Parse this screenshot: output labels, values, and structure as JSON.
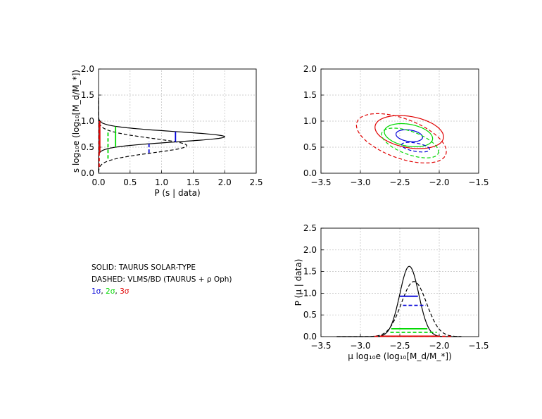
{
  "legend": {
    "solid": "SOLID:  TAURUS SOLAR-TYPE",
    "dashed": "DASHED: VLMS/BD (TAURUS + ρ Oph)",
    "s1": "1σ",
    "s2": "2σ",
    "s3": "3σ",
    "sep": ", "
  },
  "chart_data": [
    {
      "id": "p_s",
      "type": "line",
      "xlabel": "P (s | data)",
      "ylabel": "s log₁₀e (log₁₀[M_d/M_*])",
      "xlim": [
        0,
        2.5
      ],
      "ylim": [
        0,
        2
      ],
      "xticks": [
        "0.0",
        "0.5",
        "1.0",
        "1.5",
        "2.0",
        "2.5"
      ],
      "yticks": [
        "0.0",
        "0.5",
        "1.0",
        "1.5",
        "2.0"
      ],
      "grid": true,
      "series": [
        {
          "style": "solid",
          "color": "#000000",
          "peak_s": 0.7,
          "peak_p": 2.0,
          "sigma": 0.1
        },
        {
          "style": "dashed",
          "color": "#000000",
          "peak_s": 0.53,
          "peak_p": 1.4,
          "sigma": 0.14
        }
      ],
      "intervals": [
        {
          "level": "1σ",
          "style": "solid",
          "color": "#0000d8",
          "p": 1.22,
          "s": [
            0.6,
            0.8
          ]
        },
        {
          "level": "1σ",
          "style": "dashed",
          "color": "#0000d8",
          "p": 0.8,
          "s": [
            0.39,
            0.61
          ]
        },
        {
          "level": "2σ",
          "style": "solid",
          "color": "#00d800",
          "p": 0.27,
          "s": [
            0.5,
            0.9
          ]
        },
        {
          "level": "2σ",
          "style": "dashed",
          "color": "#00d800",
          "p": 0.15,
          "s": [
            0.28,
            0.83
          ]
        },
        {
          "level": "3σ",
          "style": "solid",
          "color": "#e00000",
          "p": 0.02,
          "s": [
            0.4,
            1.0
          ]
        },
        {
          "level": "3σ",
          "style": "dashed",
          "color": "#e00000",
          "p": 0.01,
          "s": [
            0.12,
            1.0
          ]
        }
      ]
    },
    {
      "id": "joint",
      "type": "contour",
      "xlim": [
        -3.5,
        -1.5
      ],
      "ylim": [
        0,
        2
      ],
      "xticks": [
        "−3.5",
        "−3.0",
        "−2.5",
        "−2.0",
        "−1.5"
      ],
      "yticks": [
        "0.0",
        "0.5",
        "1.0",
        "1.5",
        "2.0"
      ],
      "grid": true,
      "contours": [
        {
          "level": "1σ",
          "style": "solid",
          "color": "#0000d8",
          "cx": -2.38,
          "cy": 0.72,
          "rx": 0.17,
          "ry": 0.11,
          "angle": -8
        },
        {
          "level": "2σ",
          "style": "solid",
          "color": "#00d800",
          "cx": -2.39,
          "cy": 0.73,
          "rx": 0.31,
          "ry": 0.21,
          "angle": -10
        },
        {
          "level": "3σ",
          "style": "solid",
          "color": "#e00000",
          "cx": -2.38,
          "cy": 0.79,
          "rx": 0.44,
          "ry": 0.3,
          "angle": -10
        },
        {
          "level": "1σ",
          "style": "dashed",
          "color": "#0000d8",
          "cx": -2.3,
          "cy": 0.5,
          "rx": 0.18,
          "ry": 0.08,
          "angle": -10
        },
        {
          "level": "2σ",
          "style": "dashed",
          "color": "#00d800",
          "cx": -2.37,
          "cy": 0.58,
          "rx": 0.38,
          "ry": 0.22,
          "angle": -20
        },
        {
          "level": "3σ",
          "style": "dashed",
          "color": "#e00000",
          "cx": -2.48,
          "cy": 0.67,
          "rx": 0.6,
          "ry": 0.38,
          "angle": -20
        }
      ]
    },
    {
      "id": "p_mu",
      "type": "line",
      "xlabel": "μ log₁₀e (log₁₀[M_d/M_*])",
      "ylabel": "P (μ | data)",
      "xlim": [
        -3.5,
        -1.5
      ],
      "ylim": [
        0,
        2.5
      ],
      "xticks": [
        "−3.5",
        "−3.0",
        "−2.5",
        "−2.0",
        "−1.5"
      ],
      "yticks": [
        "0.0",
        "0.5",
        "1.0",
        "1.5",
        "2.0",
        "2.5"
      ],
      "grid": true,
      "series": [
        {
          "style": "solid",
          "color": "#000000",
          "peak_mu": -2.38,
          "peak_p": 1.62,
          "sigma": 0.12
        },
        {
          "style": "dashed",
          "color": "#000000",
          "peak_mu": -2.32,
          "peak_p": 1.27,
          "sigma": 0.16
        }
      ],
      "intervals": [
        {
          "level": "1σ",
          "style": "solid",
          "color": "#0000d8",
          "p": 0.93,
          "mu": [
            -2.5,
            -2.27
          ]
        },
        {
          "level": "1σ",
          "style": "dashed",
          "color": "#0000d8",
          "p": 0.72,
          "mu": [
            -2.46,
            -2.17
          ]
        },
        {
          "level": "2σ",
          "style": "solid",
          "color": "#00d800",
          "p": 0.18,
          "mu": [
            -2.61,
            -2.15
          ]
        },
        {
          "level": "2σ",
          "style": "dashed",
          "color": "#00d800",
          "p": 0.1,
          "mu": [
            -2.62,
            -2.03
          ]
        },
        {
          "level": "3σ",
          "style": "solid",
          "color": "#e00000",
          "p": 0.01,
          "mu": [
            -2.75,
            -2.02
          ]
        },
        {
          "level": "3σ",
          "style": "dashed",
          "color": "#e00000",
          "p": 0.005,
          "mu": [
            -2.82,
            -1.85
          ]
        }
      ]
    }
  ]
}
